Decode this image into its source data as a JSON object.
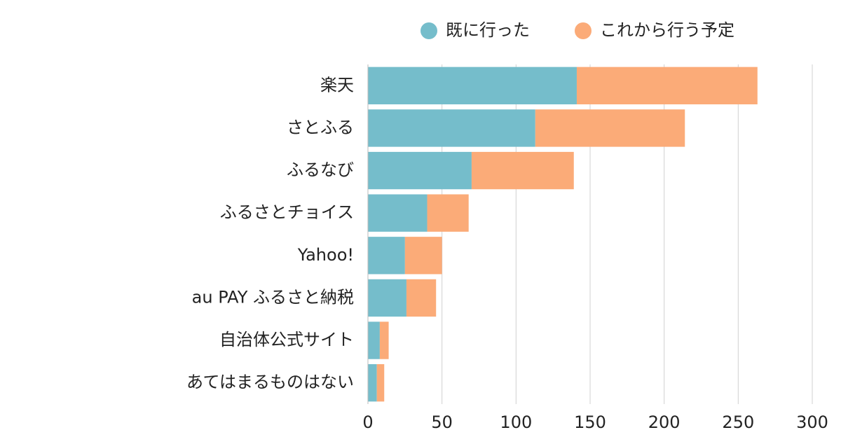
{
  "chart_data": {
    "type": "stacked-bar-horizontal",
    "categories": [
      "楽天",
      "さとふる",
      "ふるなび",
      "ふるさとチョイス",
      "Yahoo!",
      "au PAY ふるさと納税",
      "自治体公式サイト",
      "あてはまるものはない"
    ],
    "series": [
      {
        "name": "既に行った",
        "color": "#75bdcb",
        "values": [
          141,
          113,
          70,
          40,
          25,
          26,
          8,
          6
        ]
      },
      {
        "name": "これから行う予定",
        "color": "#fbab78",
        "values": [
          122,
          101,
          69,
          28,
          25,
          20,
          6,
          5
        ]
      }
    ],
    "xlim": [
      0,
      300
    ],
    "xticks": [
      0,
      50,
      100,
      150,
      200,
      250,
      300
    ],
    "grid": true,
    "legend": "top"
  }
}
